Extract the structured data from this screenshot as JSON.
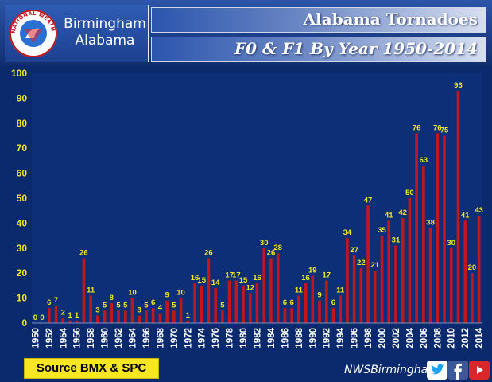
{
  "header": {
    "office_line1": "Birmingham",
    "office_line2": "Alabama",
    "seal_text": "NATIONAL WEATHER SERVICE",
    "title": "Alabama Tornadoes",
    "subtitle": "F0 & F1 By Year 1950-2014"
  },
  "footer": {
    "source": "Source BMX & SPC",
    "handle": "NWSBirmingham"
  },
  "icons": [
    "nws-seal-icon",
    "twitter-icon",
    "facebook-icon",
    "youtube-icon"
  ],
  "colors": {
    "background": "#0b2a6e",
    "bar": "#c0161c",
    "label": "#f2e71f",
    "source_box": "#f6e722"
  },
  "chart_data": {
    "type": "bar",
    "title": "",
    "xlabel": "",
    "ylabel": "",
    "ylim": [
      0,
      100
    ],
    "yticks": [
      0,
      10,
      20,
      30,
      40,
      50,
      60,
      70,
      80,
      90,
      100
    ],
    "x_tick_labels": [
      "1950",
      "1952",
      "1954",
      "1956",
      "1958",
      "1960",
      "1962",
      "1964",
      "1966",
      "1968",
      "1970",
      "1972",
      "1974",
      "1976",
      "1978",
      "1980",
      "1982",
      "1984",
      "1986",
      "1988",
      "1990",
      "1992",
      "1994",
      "1996",
      "1998",
      "2000",
      "2002",
      "2004",
      "2006",
      "2008",
      "2010",
      "2012",
      "2014"
    ],
    "grid": false,
    "legend": "none",
    "categories": [
      1950,
      1951,
      1952,
      1953,
      1954,
      1955,
      1956,
      1957,
      1958,
      1959,
      1960,
      1961,
      1962,
      1963,
      1964,
      1965,
      1966,
      1967,
      1968,
      1969,
      1970,
      1971,
      1972,
      1973,
      1974,
      1975,
      1976,
      1977,
      1978,
      1979,
      1980,
      1981,
      1982,
      1983,
      1984,
      1985,
      1986,
      1987,
      1988,
      1989,
      1990,
      1991,
      1992,
      1993,
      1994,
      1995,
      1996,
      1997,
      1998,
      1999,
      2000,
      2001,
      2002,
      2003,
      2004,
      2005,
      2006,
      2007,
      2008,
      2009,
      2010,
      2011,
      2012,
      2013,
      2014
    ],
    "values": [
      0,
      0,
      6,
      7,
      2,
      1,
      1,
      26,
      11,
      3,
      5,
      8,
      5,
      5,
      10,
      3,
      5,
      6,
      4,
      9,
      5,
      10,
      1,
      16,
      15,
      26,
      14,
      5,
      17,
      17,
      15,
      12,
      16,
      30,
      26,
      28,
      6,
      6,
      11,
      16,
      19,
      9,
      17,
      6,
      11,
      34,
      27,
      22,
      47,
      21,
      35,
      41,
      31,
      42,
      50,
      76,
      63,
      38,
      76,
      75,
      30,
      93,
      41,
      20,
      43
    ]
  }
}
